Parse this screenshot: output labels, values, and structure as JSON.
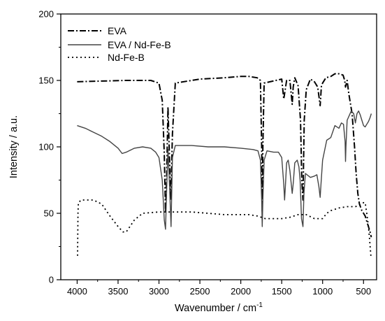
{
  "chart_data": {
    "type": "line",
    "xlabel": "Wavenumber / cm",
    "xlabel_superscript": "-1",
    "ylabel": "Intensity / a.u.",
    "xlim": [
      4200,
      340
    ],
    "ylim": [
      0,
      200
    ],
    "x_reversed": true,
    "x_ticks": [
      4000,
      3500,
      3000,
      2500,
      2000,
      1500,
      1000,
      500
    ],
    "y_ticks": [
      0,
      50,
      100,
      150,
      200
    ],
    "grid": false,
    "legend_position": "top-left",
    "series": [
      {
        "name": "EVA",
        "dash": "dashdot",
        "color": "#000000",
        "points": [
          [
            4000,
            149
          ],
          [
            3700,
            149.5
          ],
          [
            3400,
            150
          ],
          [
            3100,
            150
          ],
          [
            3000,
            148
          ],
          [
            2960,
            135
          ],
          [
            2935,
            95
          ],
          [
            2920,
            50
          ],
          [
            2905,
            80
          ],
          [
            2890,
            130
          ],
          [
            2870,
            90
          ],
          [
            2855,
            60
          ],
          [
            2835,
            110
          ],
          [
            2800,
            148
          ],
          [
            2500,
            151
          ],
          [
            2200,
            152
          ],
          [
            2000,
            153
          ],
          [
            1900,
            153
          ],
          [
            1800,
            152
          ],
          [
            1760,
            150
          ],
          [
            1745,
            100
          ],
          [
            1738,
            51
          ],
          [
            1730,
            100
          ],
          [
            1715,
            148
          ],
          [
            1500,
            151
          ],
          [
            1475,
            136
          ],
          [
            1465,
            140
          ],
          [
            1440,
            150
          ],
          [
            1400,
            150
          ],
          [
            1372,
            132
          ],
          [
            1360,
            145
          ],
          [
            1340,
            152
          ],
          [
            1300,
            146
          ],
          [
            1270,
            120
          ],
          [
            1255,
            75
          ],
          [
            1240,
            60
          ],
          [
            1225,
            120
          ],
          [
            1200,
            143
          ],
          [
            1150,
            151
          ],
          [
            1100,
            149
          ],
          [
            1060,
            145
          ],
          [
            1030,
            131
          ],
          [
            1015,
            146
          ],
          [
            1000,
            148
          ],
          [
            960,
            152
          ],
          [
            900,
            153
          ],
          [
            850,
            155
          ],
          [
            800,
            155
          ],
          [
            750,
            154
          ],
          [
            730,
            150
          ],
          [
            720,
            145
          ],
          [
            700,
            150
          ],
          [
            680,
            140
          ],
          [
            640,
            125
          ],
          [
            610,
            100
          ],
          [
            590,
            80
          ],
          [
            570,
            65
          ],
          [
            550,
            57
          ],
          [
            520,
            52
          ],
          [
            500,
            50
          ],
          [
            480,
            48
          ],
          [
            460,
            44
          ],
          [
            440,
            40
          ],
          [
            420,
            36
          ],
          [
            405,
            32
          ]
        ]
      },
      {
        "name": "EVA / Nd-Fe-B",
        "dash": "solid",
        "color": "#444444",
        "points": [
          [
            4000,
            116
          ],
          [
            3900,
            114
          ],
          [
            3800,
            111
          ],
          [
            3700,
            108
          ],
          [
            3600,
            104
          ],
          [
            3500,
            99
          ],
          [
            3450,
            95
          ],
          [
            3400,
            96
          ],
          [
            3300,
            99
          ],
          [
            3200,
            100
          ],
          [
            3100,
            99
          ],
          [
            3040,
            96
          ],
          [
            3000,
            92
          ],
          [
            2960,
            75
          ],
          [
            2935,
            45
          ],
          [
            2920,
            38
          ],
          [
            2905,
            70
          ],
          [
            2890,
            98
          ],
          [
            2870,
            70
          ],
          [
            2852,
            40
          ],
          [
            2835,
            92
          ],
          [
            2800,
            101
          ],
          [
            2600,
            101
          ],
          [
            2400,
            100
          ],
          [
            2200,
            100
          ],
          [
            2000,
            99
          ],
          [
            1850,
            98
          ],
          [
            1790,
            97
          ],
          [
            1760,
            90
          ],
          [
            1745,
            60
          ],
          [
            1738,
            40
          ],
          [
            1730,
            60
          ],
          [
            1715,
            90
          ],
          [
            1680,
            97
          ],
          [
            1600,
            96
          ],
          [
            1540,
            96
          ],
          [
            1500,
            92
          ],
          [
            1475,
            72
          ],
          [
            1465,
            60
          ],
          [
            1455,
            70
          ],
          [
            1440,
            88
          ],
          [
            1420,
            90
          ],
          [
            1400,
            82
          ],
          [
            1372,
            65
          ],
          [
            1360,
            72
          ],
          [
            1340,
            88
          ],
          [
            1310,
            90
          ],
          [
            1290,
            85
          ],
          [
            1275,
            75
          ],
          [
            1258,
            46
          ],
          [
            1240,
            40
          ],
          [
            1228,
            65
          ],
          [
            1210,
            80
          ],
          [
            1150,
            77
          ],
          [
            1100,
            78
          ],
          [
            1070,
            79
          ],
          [
            1045,
            70
          ],
          [
            1030,
            62
          ],
          [
            1020,
            72
          ],
          [
            1000,
            90
          ],
          [
            950,
            105
          ],
          [
            900,
            107
          ],
          [
            850,
            116
          ],
          [
            800,
            114
          ],
          [
            770,
            118
          ],
          [
            745,
            117
          ],
          [
            725,
            104
          ],
          [
            720,
            89
          ],
          [
            715,
            100
          ],
          [
            700,
            120
          ],
          [
            650,
            127
          ],
          [
            620,
            125
          ],
          [
            600,
            118
          ],
          [
            580,
            125
          ],
          [
            560,
            127
          ],
          [
            540,
            124
          ],
          [
            520,
            120
          ],
          [
            500,
            116
          ],
          [
            480,
            115
          ],
          [
            460,
            117
          ],
          [
            440,
            119
          ],
          [
            420,
            122
          ],
          [
            405,
            125
          ]
        ]
      },
      {
        "name": "Nd-Fe-B",
        "dash": "dotted",
        "color": "#000000",
        "points": [
          [
            3995,
            18
          ],
          [
            3990,
            50
          ],
          [
            3985,
            58
          ],
          [
            3950,
            60
          ],
          [
            3800,
            60
          ],
          [
            3700,
            57
          ],
          [
            3600,
            48
          ],
          [
            3500,
            40
          ],
          [
            3440,
            36
          ],
          [
            3400,
            36
          ],
          [
            3300,
            45
          ],
          [
            3200,
            50
          ],
          [
            3000,
            51
          ],
          [
            2800,
            51
          ],
          [
            2600,
            51
          ],
          [
            2400,
            50
          ],
          [
            2200,
            49
          ],
          [
            2000,
            49
          ],
          [
            1900,
            49
          ],
          [
            1800,
            48
          ],
          [
            1700,
            46
          ],
          [
            1600,
            46
          ],
          [
            1500,
            46
          ],
          [
            1400,
            47
          ],
          [
            1300,
            49
          ],
          [
            1200,
            49
          ],
          [
            1100,
            46
          ],
          [
            1000,
            46
          ],
          [
            950,
            50
          ],
          [
            900,
            52
          ],
          [
            800,
            54
          ],
          [
            700,
            55
          ],
          [
            600,
            55
          ],
          [
            550,
            56
          ],
          [
            500,
            58
          ],
          [
            480,
            58
          ],
          [
            460,
            50
          ],
          [
            440,
            40
          ],
          [
            425,
            30
          ],
          [
            410,
            18
          ]
        ]
      }
    ]
  }
}
